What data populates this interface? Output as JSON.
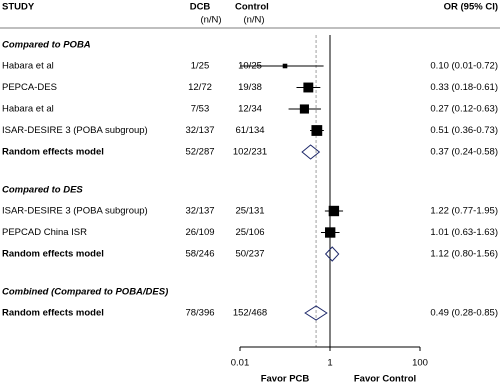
{
  "chart_data": {
    "type": "forest",
    "columns": [
      {
        "title": "STUDY"
      },
      {
        "title": "DCB",
        "sub": "(n/N)"
      },
      {
        "title": "Control",
        "sub": "(n/N)"
      },
      {
        "title": "OR (95% CI)"
      }
    ],
    "groups": [
      {
        "title": "Compared to POBA",
        "studies": [
          {
            "label": "Habara et al",
            "dcb": "1/25",
            "control": "10/25",
            "or_label": "0.10 (0.01-0.72)",
            "or": 0.1,
            "lo": 0.01,
            "hi": 0.72
          },
          {
            "label": "PEPCA-DES",
            "dcb": "12/72",
            "control": "19/38",
            "or_label": "0.33 (0.18-0.61)",
            "or": 0.33,
            "lo": 0.18,
            "hi": 0.61
          },
          {
            "label": "Habara et al",
            "dcb": "7/53",
            "control": "12/34",
            "or_label": "0.27 (0.12-0.63)",
            "or": 0.27,
            "lo": 0.12,
            "hi": 0.63
          },
          {
            "label": "ISAR-DESIRE 3 (POBA subgroup)",
            "dcb": "32/137",
            "control": "61/134",
            "or_label": "0.51 (0.36-0.73)",
            "or": 0.51,
            "lo": 0.36,
            "hi": 0.73
          }
        ],
        "pooled": {
          "label": "Random effects model",
          "dcb": "52/287",
          "control": "102/231",
          "or_label": "0.37 (0.24-0.58)",
          "or": 0.37,
          "lo": 0.24,
          "hi": 0.58
        }
      },
      {
        "title": "Compared to DES",
        "studies": [
          {
            "label": "ISAR-DESIRE 3 (POBA subgroup)",
            "dcb": "32/137",
            "control": "25/131",
            "or_label": "1.22 (0.77-1.95)",
            "or": 1.22,
            "lo": 0.77,
            "hi": 1.95
          },
          {
            "label": "PEPCAD China ISR",
            "dcb": "26/109",
            "control": "25/106",
            "or_label": "1.01 (0.63-1.63)",
            "or": 1.01,
            "lo": 0.63,
            "hi": 1.63
          }
        ],
        "pooled": {
          "label": "Random effects model",
          "dcb": "58/246",
          "control": "50/237",
          "or_label": "1.12 (0.80-1.56)",
          "or": 1.12,
          "lo": 0.8,
          "hi": 1.56
        }
      },
      {
        "title": "Combined (Compared to POBA/DES)",
        "studies": [],
        "pooled": {
          "label": "Random effects model",
          "dcb": "78/396",
          "control": "152/468",
          "or_label": "0.49 (0.28-0.85)",
          "or": 0.49,
          "lo": 0.28,
          "hi": 0.85
        }
      }
    ],
    "log_x": true,
    "xlim": [
      0.01,
      100
    ],
    "xticks": [
      0.01,
      1,
      100
    ],
    "null_value": 1,
    "favor_left": "Favor PCB",
    "favor_right": "Favor Control",
    "square_color": "#000000",
    "diamond_color": "#1f2a6b"
  }
}
